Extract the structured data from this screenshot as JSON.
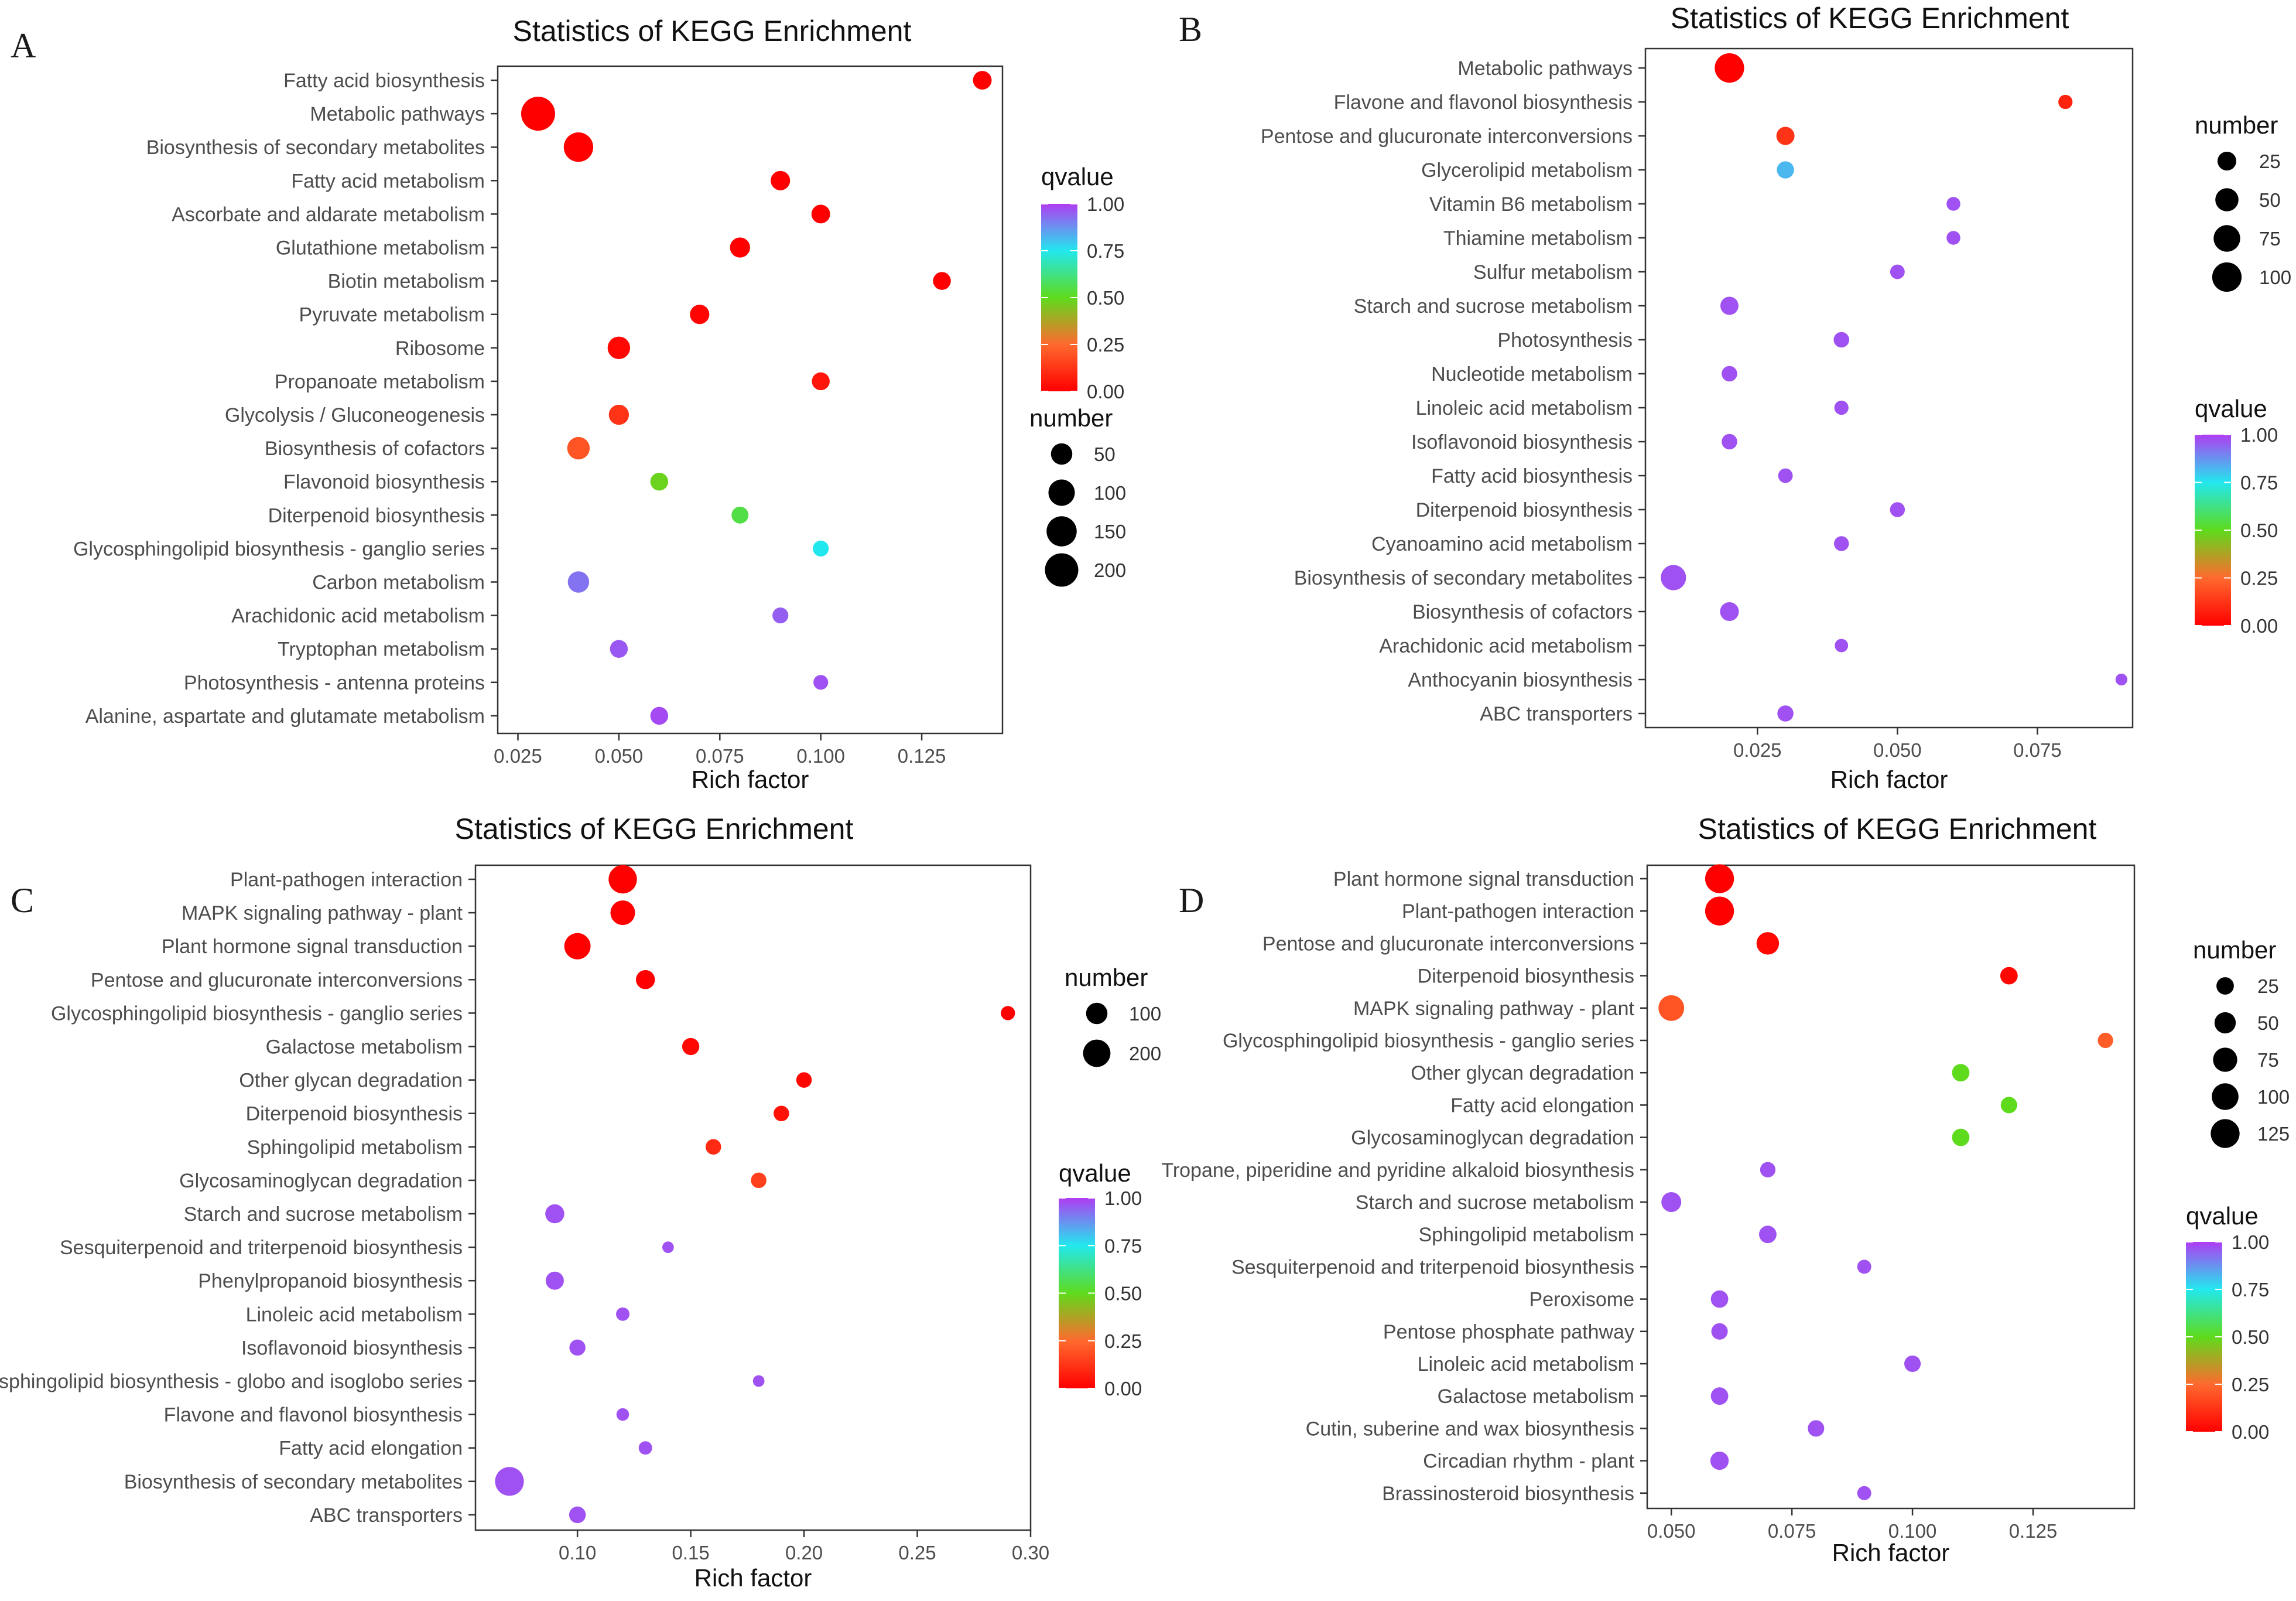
{
  "figure": {
    "panels": [
      {
        "letter": "A",
        "title": "Statistics of KEGG Enrichment",
        "xlabel": "Rich factor"
      },
      {
        "letter": "B",
        "title": "Statistics of KEGG Enrichment",
        "xlabel": "Rich factor"
      },
      {
        "letter": "C",
        "title": "Statistics of KEGG Enrichment",
        "xlabel": "Rich factor"
      },
      {
        "letter": "D",
        "title": "Statistics of KEGG Enrichment",
        "xlabel": "Rich factor"
      }
    ]
  },
  "colors": {
    "q0": "#ff0000",
    "q25": "#ff6a2e",
    "q50": "#5edb1c",
    "q75": "#22e8ee",
    "q100": "#b03cf2",
    "ink": "#000000",
    "panel_border": "#333333"
  },
  "chart_data": [
    {
      "type": "scatter",
      "panel": "A",
      "title": "Statistics of KEGG Enrichment",
      "xlabel": "Rich factor",
      "xlim": [
        0.02,
        0.145
      ],
      "xticks": [
        0.025,
        0.05,
        0.075,
        0.1,
        0.125
      ],
      "xtick_labels": [
        "0.025",
        "0.050",
        "0.075",
        "0.100",
        "0.125"
      ],
      "size_legend": {
        "title": "number",
        "values": [
          50,
          100,
          150,
          200
        ],
        "labels": [
          "50",
          "100",
          "150",
          "200"
        ]
      },
      "color_legend": {
        "title": "qvalue",
        "ticks": [
          1.0,
          0.75,
          0.5,
          0.25,
          0.0
        ],
        "labels": [
          "1.00",
          "0.75",
          "0.50",
          "0.25",
          "0.00"
        ]
      },
      "points": [
        {
          "pathway": "Fatty acid biosynthesis",
          "rich_factor": 0.14,
          "number": 30,
          "qvalue": 0.0
        },
        {
          "pathway": "Metabolic pathways",
          "rich_factor": 0.03,
          "number": 210,
          "qvalue": 0.0
        },
        {
          "pathway": "Biosynthesis of secondary metabolites",
          "rich_factor": 0.04,
          "number": 140,
          "qvalue": 0.0
        },
        {
          "pathway": "Fatty acid metabolism",
          "rich_factor": 0.09,
          "number": 35,
          "qvalue": 0.0
        },
        {
          "pathway": "Ascorbate and aldarate metabolism",
          "rich_factor": 0.1,
          "number": 30,
          "qvalue": 0.0
        },
        {
          "pathway": "Glutathione metabolism",
          "rich_factor": 0.08,
          "number": 40,
          "qvalue": 0.0
        },
        {
          "pathway": "Biotin metabolism",
          "rich_factor": 0.13,
          "number": 25,
          "qvalue": 0.0
        },
        {
          "pathway": "Pyruvate metabolism",
          "rich_factor": 0.07,
          "number": 35,
          "qvalue": 0.01
        },
        {
          "pathway": "Ribosome",
          "rich_factor": 0.05,
          "number": 60,
          "qvalue": 0.02
        },
        {
          "pathway": "Propanoate metabolism",
          "rich_factor": 0.1,
          "number": 25,
          "qvalue": 0.05
        },
        {
          "pathway": "Glycolysis / Gluconeogenesis",
          "rich_factor": 0.05,
          "number": 40,
          "qvalue": 0.12
        },
        {
          "pathway": "Biosynthesis of cofactors",
          "rich_factor": 0.04,
          "number": 60,
          "qvalue": 0.2
        },
        {
          "pathway": "Flavonoid biosynthesis",
          "rich_factor": 0.06,
          "number": 25,
          "qvalue": 0.48
        },
        {
          "pathway": "Diterpenoid biosynthesis",
          "rich_factor": 0.08,
          "number": 20,
          "qvalue": 0.55
        },
        {
          "pathway": "Glycosphingolipid biosynthesis - ganglio series",
          "rich_factor": 0.1,
          "number": 15,
          "qvalue": 0.75
        },
        {
          "pathway": "Carbon metabolism",
          "rich_factor": 0.04,
          "number": 50,
          "qvalue": 0.92
        },
        {
          "pathway": "Arachidonic acid metabolism",
          "rich_factor": 0.09,
          "number": 15,
          "qvalue": 0.95
        },
        {
          "pathway": "Tryptophan metabolism",
          "rich_factor": 0.05,
          "number": 25,
          "qvalue": 0.96
        },
        {
          "pathway": "Photosynthesis - antenna proteins",
          "rich_factor": 0.1,
          "number": 10,
          "qvalue": 0.97
        },
        {
          "pathway": "Alanine, aspartate and glutamate metabolism",
          "rich_factor": 0.06,
          "number": 25,
          "qvalue": 0.98
        }
      ]
    },
    {
      "type": "scatter",
      "panel": "B",
      "title": "Statistics of KEGG Enrichment",
      "xlabel": "Rich factor",
      "xlim": [
        0.005,
        0.092
      ],
      "xticks": [
        0.025,
        0.05,
        0.075
      ],
      "xtick_labels": [
        "0.025",
        "0.050",
        "0.075"
      ],
      "size_legend": {
        "title": "number",
        "values": [
          25,
          50,
          75,
          100
        ],
        "labels": [
          "25",
          "50",
          "75",
          "100"
        ]
      },
      "color_legend": {
        "title": "qvalue",
        "ticks": [
          1.0,
          0.75,
          0.5,
          0.25,
          0.0
        ],
        "labels": [
          "1.00",
          "0.75",
          "0.50",
          "0.25",
          "0.00"
        ]
      },
      "points": [
        {
          "pathway": "Metabolic pathways",
          "rich_factor": 0.02,
          "number": 100,
          "qvalue": 0.0
        },
        {
          "pathway": "Flavone and flavonol biosynthesis",
          "rich_factor": 0.08,
          "number": 8,
          "qvalue": 0.08
        },
        {
          "pathway": "Pentose and glucuronate interconversions",
          "rich_factor": 0.03,
          "number": 22,
          "qvalue": 0.12
        },
        {
          "pathway": "Glycerolipid metabolism",
          "rich_factor": 0.03,
          "number": 18,
          "qvalue": 0.82
        },
        {
          "pathway": "Vitamin B6 metabolism",
          "rich_factor": 0.06,
          "number": 7,
          "qvalue": 0.97
        },
        {
          "pathway": "Thiamine metabolism",
          "rich_factor": 0.06,
          "number": 7,
          "qvalue": 0.97
        },
        {
          "pathway": "Sulfur metabolism",
          "rich_factor": 0.05,
          "number": 9,
          "qvalue": 0.97
        },
        {
          "pathway": "Starch and sucrose metabolism",
          "rich_factor": 0.02,
          "number": 22,
          "qvalue": 0.97
        },
        {
          "pathway": "Photosynthesis",
          "rich_factor": 0.04,
          "number": 12,
          "qvalue": 0.97
        },
        {
          "pathway": "Nucleotide metabolism",
          "rich_factor": 0.02,
          "number": 12,
          "qvalue": 0.97
        },
        {
          "pathway": "Linoleic acid metabolism",
          "rich_factor": 0.04,
          "number": 8,
          "qvalue": 0.97
        },
        {
          "pathway": "Isoflavonoid biosynthesis",
          "rich_factor": 0.02,
          "number": 12,
          "qvalue": 0.97
        },
        {
          "pathway": "Fatty acid biosynthesis",
          "rich_factor": 0.03,
          "number": 9,
          "qvalue": 0.97
        },
        {
          "pathway": "Diterpenoid biosynthesis",
          "rich_factor": 0.05,
          "number": 10,
          "qvalue": 0.97
        },
        {
          "pathway": "Cyanoamino acid metabolism",
          "rich_factor": 0.04,
          "number": 10,
          "qvalue": 0.97
        },
        {
          "pathway": "Biosynthesis of secondary metabolites",
          "rich_factor": 0.01,
          "number": 65,
          "qvalue": 0.97
        },
        {
          "pathway": "Biosynthesis of cofactors",
          "rich_factor": 0.02,
          "number": 25,
          "qvalue": 0.97
        },
        {
          "pathway": "Arachidonic acid metabolism",
          "rich_factor": 0.04,
          "number": 6,
          "qvalue": 0.97
        },
        {
          "pathway": "Anthocyanin biosynthesis",
          "rich_factor": 0.09,
          "number": 3,
          "qvalue": 0.97
        },
        {
          "pathway": "ABC transporters",
          "rich_factor": 0.03,
          "number": 14,
          "qvalue": 0.97
        }
      ]
    },
    {
      "type": "scatter",
      "panel": "C",
      "title": "Statistics of KEGG Enrichment",
      "xlabel": "Rich factor",
      "xlim": [
        0.055,
        0.3
      ],
      "xticks": [
        0.1,
        0.15,
        0.2,
        0.25,
        0.3
      ],
      "xtick_labels": [
        "0.10",
        "0.15",
        "0.20",
        "0.25",
        "0.30"
      ],
      "size_legend": {
        "title": "number",
        "values": [
          100,
          200
        ],
        "labels": [
          "100",
          "200"
        ]
      },
      "color_legend": {
        "title": "qvalue",
        "ticks": [
          1.0,
          0.75,
          0.5,
          0.25,
          0.0
        ],
        "labels": [
          "1.00",
          "0.75",
          "0.50",
          "0.25",
          "0.00"
        ]
      },
      "points": [
        {
          "pathway": "Plant-pathogen interaction",
          "rich_factor": 0.12,
          "number": 220,
          "qvalue": 0.0
        },
        {
          "pathway": "MAPK signaling pathway - plant",
          "rich_factor": 0.12,
          "number": 150,
          "qvalue": 0.0
        },
        {
          "pathway": "Plant hormone signal transduction",
          "rich_factor": 0.1,
          "number": 180,
          "qvalue": 0.0
        },
        {
          "pathway": "Pentose and glucuronate interconversions",
          "rich_factor": 0.13,
          "number": 70,
          "qvalue": 0.0
        },
        {
          "pathway": "Glycosphingolipid biosynthesis - ganglio series",
          "rich_factor": 0.29,
          "number": 25,
          "qvalue": 0.0
        },
        {
          "pathway": "Galactose metabolism",
          "rich_factor": 0.15,
          "number": 50,
          "qvalue": 0.02
        },
        {
          "pathway": "Other glycan degradation",
          "rich_factor": 0.2,
          "number": 35,
          "qvalue": 0.02
        },
        {
          "pathway": "Diterpenoid biosynthesis",
          "rich_factor": 0.19,
          "number": 35,
          "qvalue": 0.04
        },
        {
          "pathway": "Sphingolipid metabolism",
          "rich_factor": 0.16,
          "number": 35,
          "qvalue": 0.1
        },
        {
          "pathway": "Glycosaminoglycan degradation",
          "rich_factor": 0.18,
          "number": 35,
          "qvalue": 0.15
        },
        {
          "pathway": "Starch and sucrose metabolism",
          "rich_factor": 0.09,
          "number": 70,
          "qvalue": 0.97
        },
        {
          "pathway": "Sesquiterpenoid and triterpenoid biosynthesis",
          "rich_factor": 0.14,
          "number": 10,
          "qvalue": 0.97
        },
        {
          "pathway": "Phenylpropanoid biosynthesis",
          "rich_factor": 0.09,
          "number": 60,
          "qvalue": 0.97
        },
        {
          "pathway": "Linoleic acid metabolism",
          "rich_factor": 0.12,
          "number": 20,
          "qvalue": 0.97
        },
        {
          "pathway": "Isoflavonoid biosynthesis",
          "rich_factor": 0.1,
          "number": 40,
          "qvalue": 0.97
        },
        {
          "pathway": "Glycosphingolipid biosynthesis - globo and isoglobo series",
          "rich_factor": 0.18,
          "number": 10,
          "qvalue": 0.97
        },
        {
          "pathway": "Flavone and flavonol biosynthesis",
          "rich_factor": 0.12,
          "number": 15,
          "qvalue": 0.97
        },
        {
          "pathway": "Fatty acid elongation",
          "rich_factor": 0.13,
          "number": 20,
          "qvalue": 0.97
        },
        {
          "pathway": "Biosynthesis of secondary metabolites",
          "rich_factor": 0.07,
          "number": 230,
          "qvalue": 0.97
        },
        {
          "pathway": "ABC transporters",
          "rich_factor": 0.1,
          "number": 45,
          "qvalue": 0.97
        }
      ]
    },
    {
      "type": "scatter",
      "panel": "D",
      "title": "Statistics of KEGG Enrichment",
      "xlabel": "Rich factor",
      "xlim": [
        0.045,
        0.146
      ],
      "xticks": [
        0.05,
        0.075,
        0.1,
        0.125
      ],
      "xtick_labels": [
        "0.050",
        "0.075",
        "0.100",
        "0.125"
      ],
      "size_legend": {
        "title": "number",
        "values": [
          25,
          50,
          75,
          100,
          125
        ],
        "labels": [
          "25",
          "50",
          "75",
          "100",
          "125"
        ]
      },
      "color_legend": {
        "title": "qvalue",
        "ticks": [
          1.0,
          0.75,
          0.5,
          0.25,
          0.0
        ],
        "labels": [
          "1.00",
          "0.75",
          "0.50",
          "0.25",
          "0.00"
        ]
      },
      "points": [
        {
          "pathway": "Plant hormone signal transduction",
          "rich_factor": 0.06,
          "number": 125,
          "qvalue": 0.0
        },
        {
          "pathway": "Plant-pathogen interaction",
          "rich_factor": 0.06,
          "number": 125,
          "qvalue": 0.0
        },
        {
          "pathway": "Pentose and glucuronate interconversions",
          "rich_factor": 0.07,
          "number": 60,
          "qvalue": 0.02
        },
        {
          "pathway": "Diterpenoid biosynthesis",
          "rich_factor": 0.12,
          "number": 25,
          "qvalue": 0.02
        },
        {
          "pathway": "MAPK signaling pathway - plant",
          "rich_factor": 0.05,
          "number": 90,
          "qvalue": 0.2
        },
        {
          "pathway": "Glycosphingolipid biosynthesis - ganglio series",
          "rich_factor": 0.14,
          "number": 15,
          "qvalue": 0.22
        },
        {
          "pathway": "Other glycan degradation",
          "rich_factor": 0.11,
          "number": 25,
          "qvalue": 0.5
        },
        {
          "pathway": "Fatty acid elongation",
          "rich_factor": 0.12,
          "number": 20,
          "qvalue": 0.5
        },
        {
          "pathway": "Glycosaminoglycan degradation",
          "rich_factor": 0.11,
          "number": 25,
          "qvalue": 0.5
        },
        {
          "pathway": "Tropane, piperidine and pyridine alkaloid biosynthesis",
          "rich_factor": 0.07,
          "number": 15,
          "qvalue": 0.97
        },
        {
          "pathway": "Starch and sucrose metabolism",
          "rich_factor": 0.05,
          "number": 40,
          "qvalue": 0.97
        },
        {
          "pathway": "Sphingolipid metabolism",
          "rich_factor": 0.07,
          "number": 25,
          "qvalue": 0.97
        },
        {
          "pathway": "Sesquiterpenoid and triterpenoid biosynthesis",
          "rich_factor": 0.09,
          "number": 10,
          "qvalue": 0.97
        },
        {
          "pathway": "Peroxisome",
          "rich_factor": 0.06,
          "number": 25,
          "qvalue": 0.97
        },
        {
          "pathway": "Pentose phosphate pathway",
          "rich_factor": 0.06,
          "number": 20,
          "qvalue": 0.97
        },
        {
          "pathway": "Linoleic acid metabolism",
          "rich_factor": 0.1,
          "number": 20,
          "qvalue": 0.97
        },
        {
          "pathway": "Galactose metabolism",
          "rich_factor": 0.06,
          "number": 25,
          "qvalue": 0.97
        },
        {
          "pathway": "Cutin, suberine and wax biosynthesis",
          "rich_factor": 0.08,
          "number": 20,
          "qvalue": 0.97
        },
        {
          "pathway": "Circadian rhythm - plant",
          "rich_factor": 0.06,
          "number": 30,
          "qvalue": 0.97
        },
        {
          "pathway": "Brassinosteroid biosynthesis",
          "rich_factor": 0.09,
          "number": 10,
          "qvalue": 0.97
        }
      ]
    }
  ]
}
